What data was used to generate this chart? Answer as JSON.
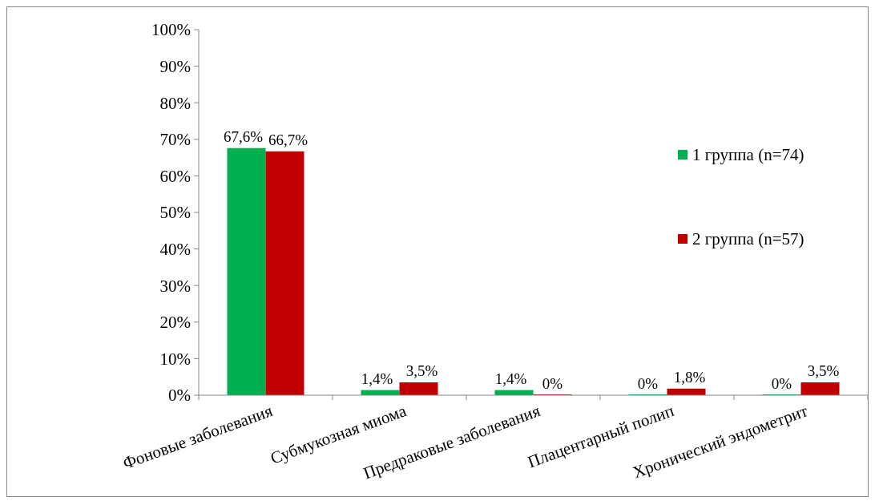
{
  "chart_data": {
    "type": "bar",
    "categories": [
      "Фоновые заболевания",
      "Субмукозная миома",
      "Предраковые заболевания",
      "Плацентарный полип",
      "Хронический эндометрит"
    ],
    "series": [
      {
        "name": "1 группа (n=74)",
        "color": "#00b050",
        "values": [
          67.6,
          1.4,
          1.4,
          0,
          0
        ],
        "value_labels": [
          "67,6%",
          "1,4%",
          "1,4%",
          "0%",
          "0%"
        ]
      },
      {
        "name": "2 группа (n=57)",
        "color": "#c00000",
        "values": [
          66.7,
          3.5,
          0,
          1.8,
          3.5
        ],
        "value_labels": [
          "66,7%",
          "3,5%",
          "0%",
          "1,8%",
          "3,5%"
        ]
      }
    ],
    "ylim": [
      0,
      100
    ],
    "yticks": [
      {
        "value": 0,
        "label": "0%"
      },
      {
        "value": 10,
        "label": "10%"
      },
      {
        "value": 20,
        "label": "20%"
      },
      {
        "value": 30,
        "label": "30%"
      },
      {
        "value": 40,
        "label": "40%"
      },
      {
        "value": 50,
        "label": "50%"
      },
      {
        "value": 60,
        "label": "60%"
      },
      {
        "value": 70,
        "label": "70%"
      },
      {
        "value": 80,
        "label": "80%"
      },
      {
        "value": 90,
        "label": "90%"
      },
      {
        "value": 100,
        "label": "100%"
      }
    ],
    "legend": "right"
  }
}
